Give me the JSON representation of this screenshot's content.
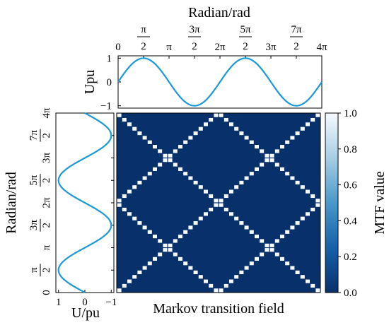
{
  "figure": {
    "top_plot": {
      "title": "Radian/rad",
      "ylabel": "Upu"
    },
    "left_plot": {
      "ylabel": "Radian/rad",
      "xlabel": "U/pu"
    },
    "heatmap": {
      "xlabel": "Markov transition field"
    },
    "colorbar": {
      "label": "MTF value"
    },
    "colors": {
      "curve": "#1a9ad6",
      "heat_low": "#08306b",
      "heat_high": "#f7fbff"
    }
  },
  "chart_data": [
    {
      "type": "line",
      "title": "Radian/rad",
      "xlabel": "",
      "ylabel": "Upu",
      "function": "sin",
      "x_range": [
        0,
        12.566
      ],
      "xticks": [
        {
          "value": 0,
          "label": "0"
        },
        {
          "value": 1.5708,
          "label_num": "π",
          "label_den": "2"
        },
        {
          "value": 3.1416,
          "label": "π"
        },
        {
          "value": 4.7124,
          "label_num": "3π",
          "label_den": "2"
        },
        {
          "value": 6.2832,
          "label": "2π"
        },
        {
          "value": 7.854,
          "label_num": "5π",
          "label_den": "2"
        },
        {
          "value": 9.4248,
          "label": "3π"
        },
        {
          "value": 10.9956,
          "label_num": "7π",
          "label_den": "2"
        },
        {
          "value": 12.566,
          "label": "4π"
        }
      ],
      "yticks": [
        {
          "value": 1,
          "label": "1"
        },
        {
          "value": 0,
          "label": "0"
        },
        {
          "value": -1,
          "label": "−1"
        }
      ],
      "ylim": [
        -1.1,
        1.1
      ]
    },
    {
      "type": "line",
      "orientation": "vertical",
      "xlabel": "U/pu",
      "ylabel": "Radian/rad",
      "function": "sin",
      "x_axis_reversed": true,
      "xticks": [
        {
          "value": 1,
          "label": "1"
        },
        {
          "value": 0,
          "label": "0"
        },
        {
          "value": -1,
          "label": "−1"
        }
      ],
      "yticks": [
        {
          "value": 0,
          "label": "0"
        },
        {
          "value": 1.5708,
          "label_num": "π",
          "label_den": "2"
        },
        {
          "value": 3.1416,
          "label": "π"
        },
        {
          "value": 4.7124,
          "label_num": "3π",
          "label_den": "2"
        },
        {
          "value": 6.2832,
          "label": "2π"
        },
        {
          "value": 7.854,
          "label_num": "5π",
          "label_den": "2"
        },
        {
          "value": 9.4248,
          "label": "3π"
        },
        {
          "value": 10.9956,
          "label_num": "7π",
          "label_den": "2"
        },
        {
          "value": 12.566,
          "label": "4π"
        }
      ]
    },
    {
      "type": "heatmap",
      "xlabel": "Markov transition field",
      "grid_size": 40,
      "value_range": [
        0,
        1
      ],
      "pattern": "bright cells where row index equals column index mirrored about the period; low elsewhere",
      "period": 20,
      "colorbar": {
        "label": "MTF value",
        "range": [
          0.0,
          1.0
        ],
        "ticks": [
          "0.0",
          "0.2",
          "0.4",
          "0.6",
          "0.8",
          "1.0"
        ]
      }
    }
  ]
}
